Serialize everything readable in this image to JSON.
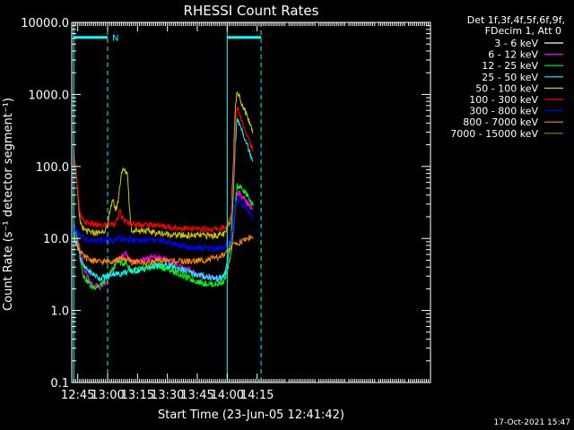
{
  "chart_data": {
    "type": "line",
    "title": "RHESSI Count Rates",
    "xlabel": "Start Time (23-Jun-05 12:41:42)",
    "ylabel": "Count Rate (s⁻¹ detector segment⁻¹)",
    "y_scale": "log",
    "ylim": [
      0.1,
      10000
    ],
    "xlim_minutes": [
      42,
      222
    ],
    "x_ticks": [
      {
        "t": 45,
        "label": "12:45"
      },
      {
        "t": 60,
        "label": "13:00"
      },
      {
        "t": 75,
        "label": "13:15"
      },
      {
        "t": 90,
        "label": "13:30"
      },
      {
        "t": 105,
        "label": "13:45"
      },
      {
        "t": 120,
        "label": "14:00"
      },
      {
        "t": 135,
        "label": "14:15"
      }
    ],
    "y_ticks": [
      {
        "v": 0.1,
        "label": "0.1"
      },
      {
        "v": 1,
        "label": "1.0"
      },
      {
        "v": 10,
        "label": "10.0"
      },
      {
        "v": 100,
        "label": "100.0"
      },
      {
        "v": 1000,
        "label": "1000.0"
      },
      {
        "v": 10000,
        "label": "10000.0"
      }
    ],
    "legend_header": [
      "Det 1f,3f,4f,5f,6f,9f,",
      "FDecim 1, Att 0"
    ],
    "annotation_letter": "N",
    "series": [
      {
        "name": "3 - 6 keV",
        "color": "#000000",
        "points": [
          [
            43,
            15
          ],
          [
            46,
            4
          ],
          [
            48,
            2
          ],
          [
            52,
            1.6
          ],
          [
            56,
            1.5
          ],
          [
            60,
            1.8
          ],
          [
            63,
            2.5
          ],
          [
            65,
            3.2
          ],
          [
            67,
            2.8
          ],
          [
            69,
            3
          ],
          [
            72,
            3.2
          ],
          [
            78,
            3.8
          ],
          [
            84,
            4
          ],
          [
            90,
            3.4
          ],
          [
            96,
            2.5
          ],
          [
            102,
            2
          ],
          [
            108,
            1.6
          ],
          [
            114,
            1.5
          ],
          [
            117,
            1.6
          ],
          [
            119,
            1.9
          ],
          [
            122,
            4
          ],
          [
            123,
            8
          ],
          [
            124,
            20
          ],
          [
            125,
            40
          ],
          [
            127,
            35
          ],
          [
            130,
            25
          ],
          [
            133,
            18
          ]
        ]
      },
      {
        "name": "6 - 12 keV",
        "color": "#ff00ff",
        "points": [
          [
            43,
            18
          ],
          [
            46,
            7
          ],
          [
            48,
            4
          ],
          [
            52,
            2.3
          ],
          [
            56,
            2.1
          ],
          [
            60,
            2.5
          ],
          [
            63,
            3.8
          ],
          [
            65,
            5
          ],
          [
            67,
            5.5
          ],
          [
            69,
            6
          ],
          [
            72,
            4.6
          ],
          [
            78,
            5.2
          ],
          [
            84,
            5.5
          ],
          [
            90,
            5
          ],
          [
            96,
            4
          ],
          [
            102,
            3.5
          ],
          [
            108,
            3
          ],
          [
            114,
            2.8
          ],
          [
            117,
            2.7
          ],
          [
            119,
            3
          ],
          [
            122,
            6
          ],
          [
            123,
            12
          ],
          [
            124,
            25
          ],
          [
            125,
            45
          ],
          [
            127,
            40
          ],
          [
            130,
            32
          ],
          [
            133,
            25
          ]
        ]
      },
      {
        "name": "12 - 25 keV",
        "color": "#00ff00",
        "points": [
          [
            43,
            16
          ],
          [
            46,
            6
          ],
          [
            48,
            3
          ],
          [
            52,
            2.1
          ],
          [
            56,
            2.2
          ],
          [
            60,
            2.8
          ],
          [
            63,
            4
          ],
          [
            65,
            5
          ],
          [
            67,
            4.5
          ],
          [
            69,
            4.6
          ],
          [
            72,
            3.6
          ],
          [
            78,
            3.8
          ],
          [
            84,
            4.1
          ],
          [
            90,
            3.8
          ],
          [
            96,
            3.2
          ],
          [
            102,
            2.7
          ],
          [
            108,
            2.4
          ],
          [
            114,
            2.3
          ],
          [
            117,
            2.4
          ],
          [
            119,
            2.8
          ],
          [
            122,
            6
          ],
          [
            123,
            14
          ],
          [
            124,
            28
          ],
          [
            125,
            55
          ],
          [
            127,
            50
          ],
          [
            130,
            40
          ],
          [
            133,
            28
          ]
        ]
      },
      {
        "name": "25 - 50 keV",
        "color": "#00ffff",
        "points": [
          [
            43,
            12
          ],
          [
            46,
            6
          ],
          [
            48,
            4
          ],
          [
            52,
            3.3
          ],
          [
            56,
            2.8
          ],
          [
            60,
            3
          ],
          [
            63,
            3.3
          ],
          [
            65,
            3.2
          ],
          [
            67,
            3.3
          ],
          [
            69,
            3.4
          ],
          [
            72,
            3.5
          ],
          [
            78,
            3.7
          ],
          [
            84,
            4.2
          ],
          [
            90,
            4.2
          ],
          [
            96,
            3.8
          ],
          [
            102,
            3.3
          ],
          [
            108,
            3
          ],
          [
            114,
            2.8
          ],
          [
            117,
            2.8
          ],
          [
            119,
            3.3
          ],
          [
            122,
            10
          ],
          [
            123,
            40
          ],
          [
            124,
            200
          ],
          [
            125,
            450
          ],
          [
            127,
            350
          ],
          [
            130,
            200
          ],
          [
            133,
            120
          ]
        ]
      },
      {
        "name": "50 - 100 keV",
        "color": "#cccc00",
        "points": [
          [
            43,
            150
          ],
          [
            44,
            90
          ],
          [
            45,
            40
          ],
          [
            46,
            18
          ],
          [
            48,
            13
          ],
          [
            52,
            12
          ],
          [
            56,
            12
          ],
          [
            60,
            14
          ],
          [
            61,
            25
          ],
          [
            62,
            30
          ],
          [
            63,
            32
          ],
          [
            64,
            25
          ],
          [
            65,
            30
          ],
          [
            66,
            50
          ],
          [
            67,
            85
          ],
          [
            68,
            88
          ],
          [
            69,
            85
          ],
          [
            70,
            80
          ],
          [
            71,
            25
          ],
          [
            72,
            13
          ],
          [
            78,
            13
          ],
          [
            84,
            12
          ],
          [
            90,
            11.5
          ],
          [
            96,
            11
          ],
          [
            102,
            11
          ],
          [
            108,
            11
          ],
          [
            114,
            11
          ],
          [
            119,
            11.5
          ],
          [
            122,
            20
          ],
          [
            123,
            100
          ],
          [
            124,
            600
          ],
          [
            125,
            1100
          ],
          [
            127,
            800
          ],
          [
            130,
            500
          ],
          [
            133,
            300
          ]
        ]
      },
      {
        "name": "100 - 300 keV",
        "color": "#ff0000",
        "points": [
          [
            43,
            160
          ],
          [
            44,
            100
          ],
          [
            45,
            50
          ],
          [
            46,
            22
          ],
          [
            48,
            17
          ],
          [
            52,
            16
          ],
          [
            56,
            15
          ],
          [
            60,
            15.5
          ],
          [
            63,
            16
          ],
          [
            65,
            18
          ],
          [
            66,
            24
          ],
          [
            67,
            20
          ],
          [
            69,
            17
          ],
          [
            72,
            16
          ],
          [
            78,
            15.5
          ],
          [
            84,
            15.5
          ],
          [
            90,
            14.5
          ],
          [
            96,
            14
          ],
          [
            102,
            13.5
          ],
          [
            108,
            13.5
          ],
          [
            114,
            13.5
          ],
          [
            119,
            14
          ],
          [
            122,
            20
          ],
          [
            123,
            60
          ],
          [
            124,
            350
          ],
          [
            125,
            700
          ],
          [
            127,
            450
          ],
          [
            130,
            280
          ],
          [
            133,
            160
          ]
        ]
      },
      {
        "name": "300 - 800 keV",
        "color": "#0000ff",
        "points": [
          [
            43,
            14
          ],
          [
            46,
            11
          ],
          [
            48,
            10
          ],
          [
            52,
            9.5
          ],
          [
            56,
            9.5
          ],
          [
            60,
            9.5
          ],
          [
            63,
            9.5
          ],
          [
            65,
            10
          ],
          [
            67,
            10
          ],
          [
            69,
            9.8
          ],
          [
            72,
            9.5
          ],
          [
            78,
            9.3
          ],
          [
            84,
            9.5
          ],
          [
            90,
            9
          ],
          [
            96,
            8
          ],
          [
            102,
            7.5
          ],
          [
            108,
            7.3
          ],
          [
            114,
            7.3
          ],
          [
            119,
            7.5
          ],
          [
            122,
            10
          ],
          [
            123,
            15
          ],
          [
            124,
            28
          ],
          [
            125,
            35
          ],
          [
            127,
            30
          ],
          [
            130,
            25
          ],
          [
            133,
            20
          ]
        ]
      },
      {
        "name": "800 - 7000 keV",
        "color": "#ff8800",
        "points": [
          [
            43,
            10
          ],
          [
            46,
            7
          ],
          [
            48,
            5.5
          ],
          [
            52,
            5
          ],
          [
            56,
            4.7
          ],
          [
            60,
            4.8
          ],
          [
            63,
            5
          ],
          [
            65,
            5
          ],
          [
            67,
            5.3
          ],
          [
            69,
            5.2
          ],
          [
            72,
            4.8
          ],
          [
            78,
            4.6
          ],
          [
            84,
            4.8
          ],
          [
            90,
            5
          ],
          [
            96,
            4.8
          ],
          [
            102,
            4.8
          ],
          [
            108,
            5
          ],
          [
            114,
            5.3
          ],
          [
            119,
            6
          ],
          [
            122,
            7.5
          ],
          [
            124,
            8.5
          ],
          [
            127,
            9
          ],
          [
            130,
            10
          ],
          [
            133,
            10.5
          ]
        ]
      },
      {
        "name": "7000 - 15000 keV",
        "color": "#888800",
        "points": []
      }
    ],
    "vlines": [
      {
        "t": 43,
        "color": "#00ffff",
        "style": "solid"
      },
      {
        "t": 60,
        "color": "#00ffff",
        "style": "dashed"
      },
      {
        "t": 120,
        "color": "#00ffff",
        "style": "solid"
      },
      {
        "t": 137,
        "color": "#00ffff",
        "style": "dashed"
      }
    ],
    "bars": [
      {
        "t0": 43,
        "t1": 60,
        "v": 6200,
        "color": "#00ffff"
      },
      {
        "t0": 120,
        "t1": 137,
        "v": 6200,
        "color": "#00ffff"
      }
    ]
  },
  "footer": {
    "timestamp": "17-Oct-2021 15:47"
  }
}
